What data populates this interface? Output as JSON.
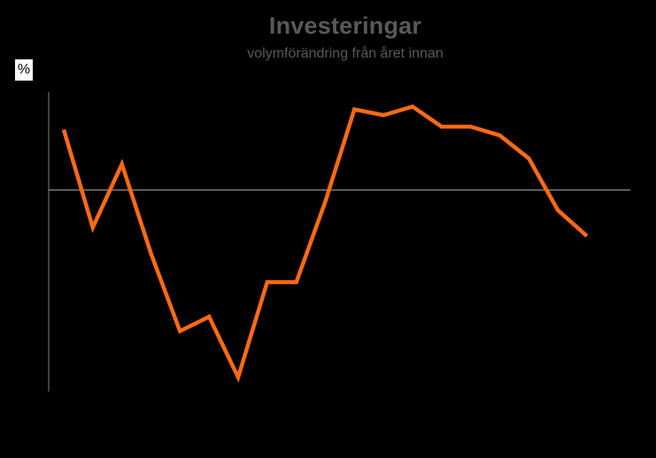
{
  "chart_data": {
    "type": "line",
    "title": "Investeringar",
    "subtitle": "volymförändring från året innan",
    "ylabel": "%",
    "xlabel": "",
    "ylim": [
      -7,
      3.4
    ],
    "zero_line": true,
    "grid": false,
    "legend": "none",
    "x": [
      1,
      2,
      3,
      4,
      5,
      6,
      7,
      8,
      9,
      10,
      11,
      12,
      13,
      14,
      15,
      16,
      17,
      18,
      19
    ],
    "series": [
      {
        "color": "#FF6A13",
        "values": [
          2.1,
          -1.3,
          0.9,
          -2.2,
          -4.9,
          -4.4,
          -6.5,
          -3.2,
          -3.2,
          -0.4,
          2.8,
          2.6,
          2.9,
          2.2,
          2.2,
          1.9,
          1.1,
          -0.7,
          -1.6
        ]
      }
    ]
  },
  "colors": {
    "background": "#000000",
    "title": "#595959",
    "axis": "#808080",
    "series": "#FF6A13"
  }
}
